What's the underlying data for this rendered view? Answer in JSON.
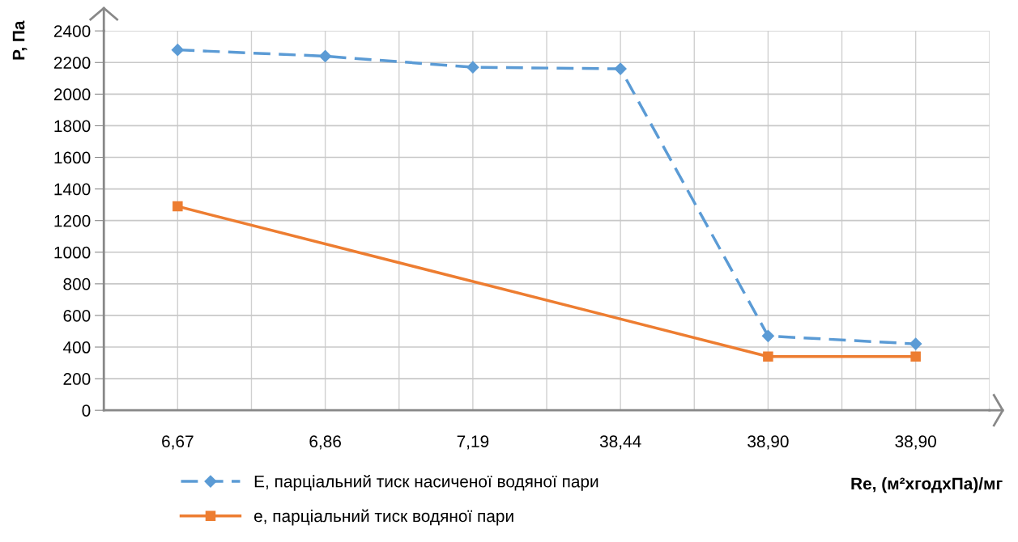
{
  "chart_data": {
    "type": "line",
    "xlabel": "Re, (м²хгодхПа)/мг",
    "ylabel": "P, Па",
    "categories": [
      "6,67",
      "6,86",
      "7,19",
      "38,44",
      "38,90",
      "38,90"
    ],
    "series": [
      {
        "name": "E, парціальний тиск насиченої водяної пари",
        "color": "#5b9bd5",
        "values": [
          2280,
          2240,
          2170,
          2160,
          470,
          420
        ],
        "marker": "diamond",
        "line_style": "dashed"
      },
      {
        "name": "e, парціальний тиск водяної пари",
        "color": "#ed7d31",
        "values": [
          1290,
          null,
          null,
          null,
          340,
          340
        ],
        "marker": "square",
        "line_style": "solid"
      }
    ],
    "ylim": [
      0,
      2400
    ],
    "yticks": [
      0,
      200,
      400,
      600,
      800,
      1000,
      1200,
      1400,
      1600,
      1800,
      2000,
      2200,
      2400
    ],
    "grid": true,
    "legend": "bottom left"
  }
}
